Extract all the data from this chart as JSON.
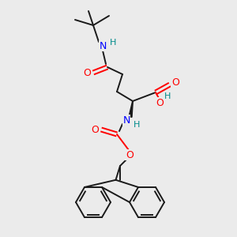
{
  "bg_color": "#ebebeb",
  "colors": {
    "N": "#0000ff",
    "O": "#ff0000",
    "H": "#008b8b",
    "C": "#1a1a1a"
  },
  "figsize": [
    3.0,
    3.0
  ],
  "dpi": 100,
  "lw": 1.4,
  "fs": 8.5
}
